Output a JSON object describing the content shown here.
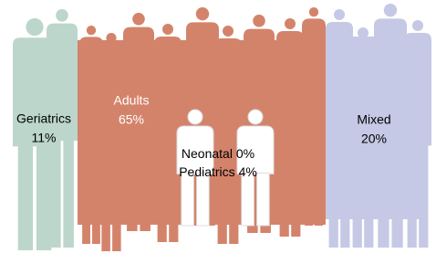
{
  "chart_data": {
    "type": "pictograph",
    "categories": [
      "Geriatrics",
      "Adults",
      "Neonatal",
      "Pediatrics",
      "Mixed"
    ],
    "values": [
      11,
      65,
      0,
      4,
      20
    ],
    "value_labels": [
      "11%",
      "65%",
      "0%",
      "4%",
      "20%"
    ],
    "colors": [
      "#bcd6cb",
      "#d4836b",
      "#ffffff",
      "#ffffff",
      "#c5c9e5"
    ]
  }
}
